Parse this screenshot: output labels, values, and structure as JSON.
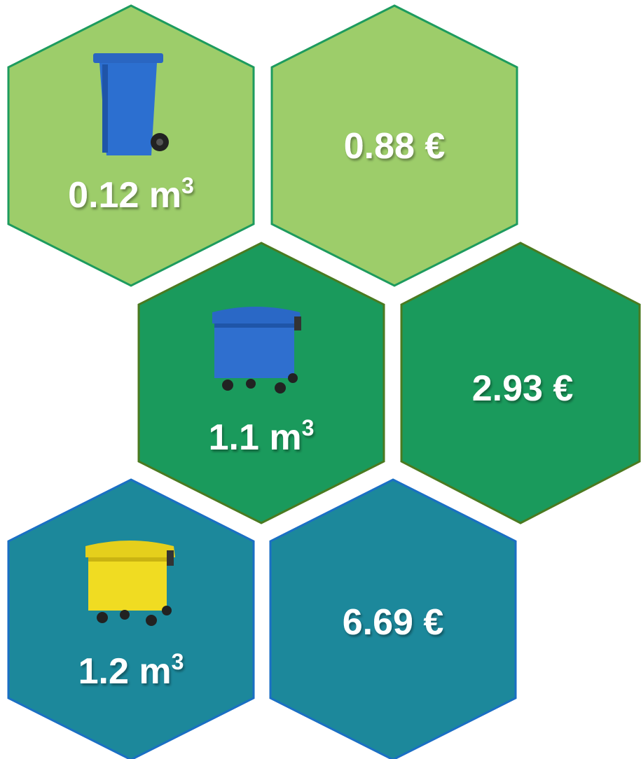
{
  "tiles": [
    {
      "volume": "0.12 m",
      "volume_exponent": "3",
      "price": "0.88 €"
    },
    {
      "volume": "1.1 m",
      "volume_exponent": "3",
      "price": "2.93 €"
    },
    {
      "volume": "1.2 m",
      "volume_exponent": "3",
      "price": "6.69 €"
    }
  ]
}
